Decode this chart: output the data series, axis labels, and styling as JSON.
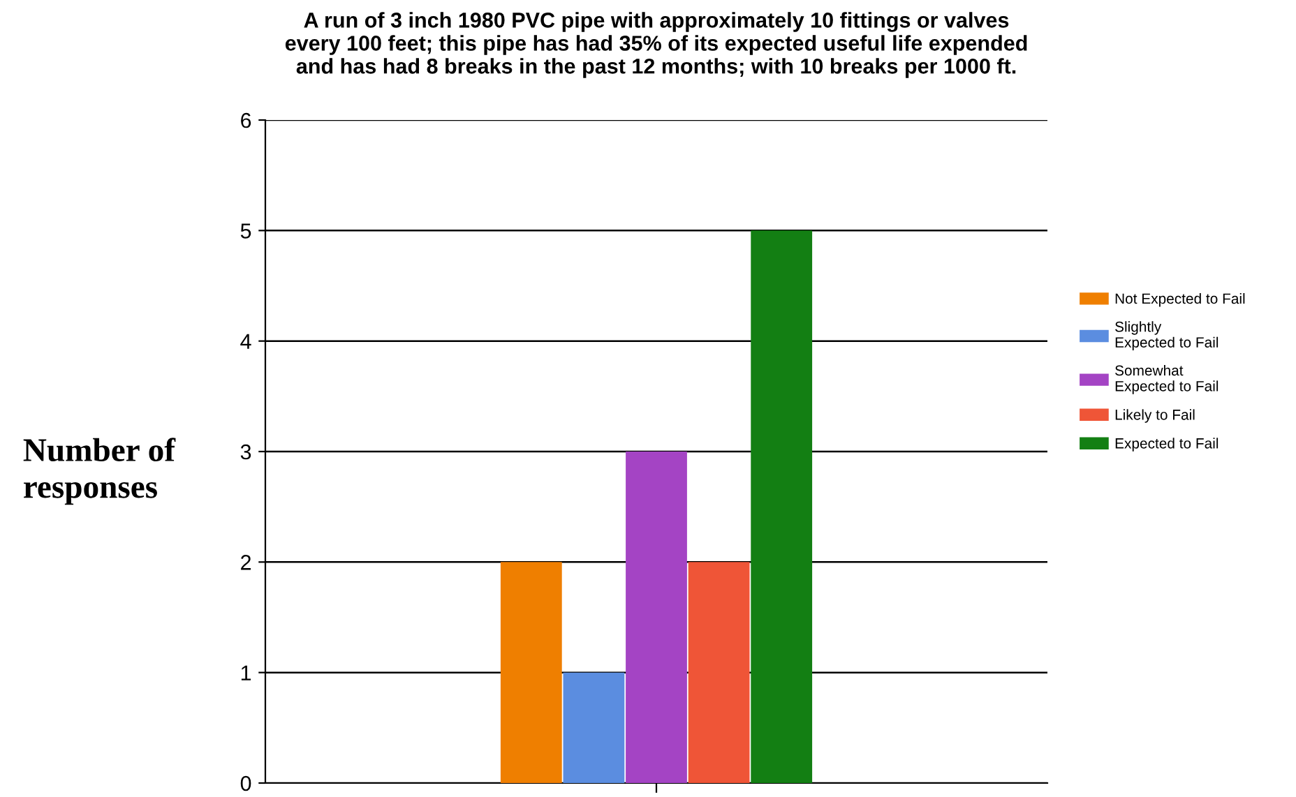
{
  "chart_data": {
    "type": "bar",
    "title": "A run of 3 inch 1980 PVC pipe with approximately 10 fittings or valves\nevery 100 feet; this pipe has had 35% of its expected useful life expended\nand has had 8 breaks in the past 12 months; with 10 breaks per 1000 ft.",
    "ylabel": "Number of\nresponses",
    "categories": [
      null
    ],
    "series": [
      {
        "name": "Not Expected to Fail",
        "color": "#ef7f00",
        "values": [
          2
        ]
      },
      {
        "name": "Slightly\nExpected to Fail",
        "color": "#5b8de0",
        "values": [
          1
        ]
      },
      {
        "name": "Somewhat\nExpected to Fail",
        "color": "#a444c4",
        "values": [
          3
        ]
      },
      {
        "name": "Likely to Fail",
        "color": "#ef5537",
        "values": [
          2
        ]
      },
      {
        "name": "Expected to Fail",
        "color": "#137f13",
        "values": [
          5
        ]
      }
    ],
    "ylim": [
      0,
      6
    ],
    "yticks": [
      0,
      1,
      2,
      3,
      4,
      5,
      6
    ],
    "grid": "y",
    "legend": "right",
    "tick_labels": "y"
  }
}
